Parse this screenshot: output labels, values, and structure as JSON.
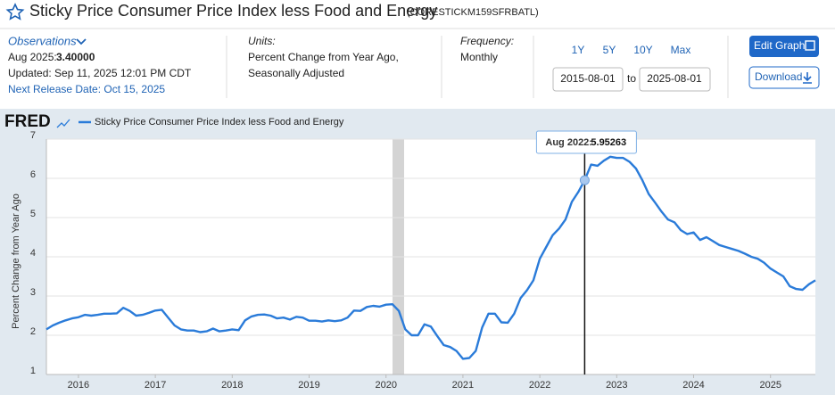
{
  "header": {
    "title": "Sticky Price Consumer Price Index less Food and Energy",
    "series_id": "(CORESTICKM159SFRBATL)",
    "observations_label": "Observations",
    "observation_date": "Aug 2025:",
    "observation_value": "3.40000",
    "updated": "Updated: Sep 11, 2025 12:01 PM CDT",
    "next_release": "Next Release Date: Oct 15, 2025",
    "units_label": "Units:",
    "units": [
      "Percent Change from Year Ago,",
      "Seasonally Adjusted"
    ],
    "frequency_label": "Frequency:",
    "frequency": "Monthly",
    "ranges": [
      "1Y",
      "5Y",
      "10Y",
      "Max"
    ],
    "date_from": "2015-08-01",
    "date_to_label": "to",
    "date_to": "2025-08-01",
    "edit_button": "Edit Graph",
    "download_button": "Download"
  },
  "chart_data": {
    "type": "line",
    "logo": "FRED",
    "ylabel": "Percent Change from Year Ago",
    "ylim": [
      1,
      7
    ],
    "yticks": [
      1,
      2,
      3,
      4,
      5,
      6,
      7
    ],
    "xticks": [
      2016,
      2017,
      2018,
      2019,
      2020,
      2021,
      2022,
      2023,
      2024,
      2025
    ],
    "grid": true,
    "tooltip": {
      "label": "Aug 2022:",
      "value": 5.95263
    },
    "series": [
      {
        "name": "Sticky Price Consumer Price Index less Food and Energy",
        "color": "#2a7bd9",
        "values": [
          2.15,
          2.25,
          2.32,
          2.38,
          2.43,
          2.46,
          2.52,
          2.5,
          2.52,
          2.55,
          2.55,
          2.56,
          2.7,
          2.62,
          2.5,
          2.52,
          2.57,
          2.63,
          2.65,
          2.45,
          2.25,
          2.15,
          2.12,
          2.12,
          2.08,
          2.1,
          2.17,
          2.1,
          2.12,
          2.15,
          2.13,
          2.38,
          2.48,
          2.52,
          2.53,
          2.5,
          2.43,
          2.45,
          2.4,
          2.47,
          2.45,
          2.37,
          2.37,
          2.35,
          2.38,
          2.36,
          2.38,
          2.45,
          2.63,
          2.62,
          2.72,
          2.75,
          2.73,
          2.78,
          2.79,
          2.62,
          2.15,
          2.0,
          2.0,
          2.28,
          2.22,
          1.98,
          1.75,
          1.7,
          1.6,
          1.4,
          1.42,
          1.6,
          2.2,
          2.55,
          2.55,
          2.33,
          2.32,
          2.55,
          2.95,
          3.15,
          3.4,
          3.95,
          4.25,
          4.55,
          4.72,
          4.95,
          5.4,
          5.65,
          5.95263,
          6.35,
          6.32,
          6.45,
          6.55,
          6.52,
          6.52,
          6.42,
          6.25,
          5.95,
          5.6,
          5.38,
          5.15,
          4.95,
          4.88,
          4.68,
          4.58,
          4.62,
          4.43,
          4.5,
          4.4,
          4.3,
          4.25,
          4.2,
          4.15,
          4.08,
          4.0,
          3.95,
          3.85,
          3.7,
          3.6,
          3.5,
          3.25,
          3.18,
          3.16,
          3.3,
          3.4
        ]
      }
    ]
  }
}
